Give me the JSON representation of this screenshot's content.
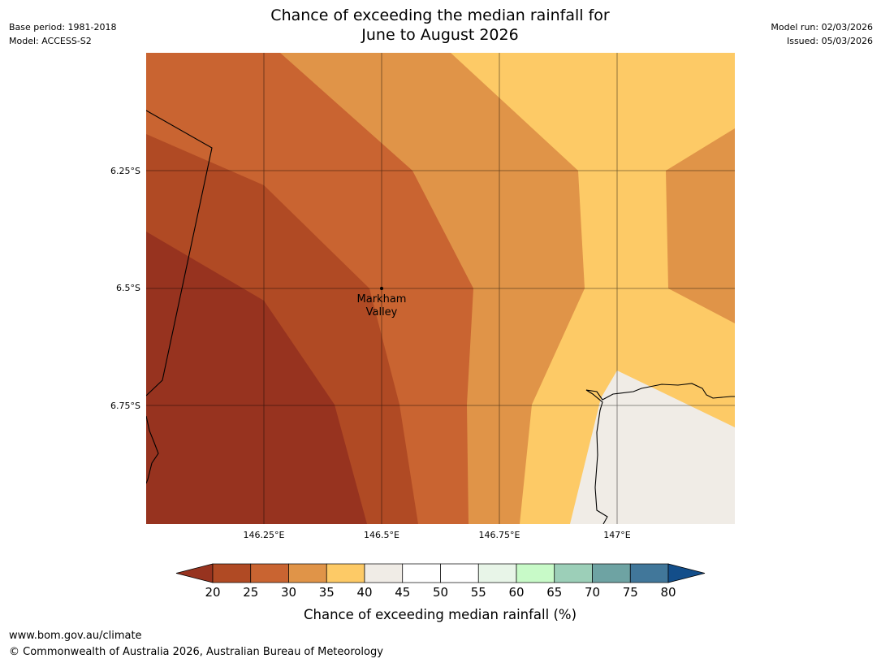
{
  "header": {
    "title_line1": "Chance of exceeding the median rainfall for",
    "title_line2": "June to August 2026",
    "base_period": "Base period: 1981-2018",
    "model": "Model: ACCESS-S2",
    "model_run": "Model run: 02/03/2026",
    "issued": "Issued: 05/03/2026"
  },
  "map": {
    "lat_labels": [
      "6.25°S",
      "6.5°S",
      "6.75°S"
    ],
    "lon_labels": [
      "146.25°E",
      "146.5°E",
      "146.75°E",
      "147°E"
    ],
    "place": {
      "name_line1": "Markham",
      "name_line2": "Valley"
    },
    "zone_colors": {
      "below_25": "#97331f",
      "25_30": "#b04a24",
      "30_35": "#c96431",
      "35_40": "#e09448",
      "40_45": "#fdca66",
      "land_masked": "#f0ece6"
    }
  },
  "legend": {
    "title": "Chance of exceeding median rainfall (%)",
    "ticks": [
      "20",
      "25",
      "30",
      "35",
      "40",
      "45",
      "50",
      "55",
      "60",
      "65",
      "70",
      "75",
      "80"
    ],
    "colors": [
      "#b04a24",
      "#c96431",
      "#e09448",
      "#fdca66",
      "#f0ece6",
      "#ffffff",
      "#ffffff",
      "#e8f5e8",
      "#c8fac8",
      "#9ccfb8",
      "#6ea3a3",
      "#41779a"
    ],
    "under_color": "#97331f",
    "over_color": "#134e8a"
  },
  "footer": {
    "url": "www.bom.gov.au/climate",
    "copyright": "© Commonwealth of Australia 2026, Australian Bureau of Meteorology"
  }
}
